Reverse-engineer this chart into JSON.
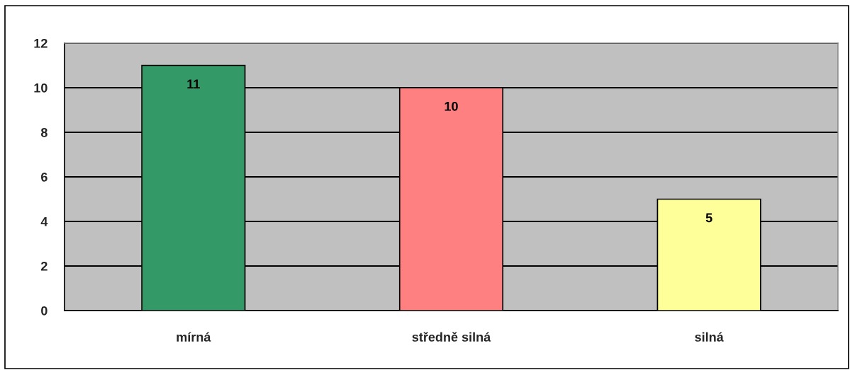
{
  "chart_data": {
    "type": "bar",
    "categories": [
      "mírná",
      "středně silná",
      "silná"
    ],
    "values": [
      11,
      10,
      5
    ],
    "colors": [
      "#339966",
      "#ff8080",
      "#ffff99"
    ],
    "ylim": [
      0,
      12
    ],
    "yticks": [
      0,
      2,
      4,
      6,
      8,
      10,
      12
    ],
    "grid": "y",
    "data_labels": true
  }
}
